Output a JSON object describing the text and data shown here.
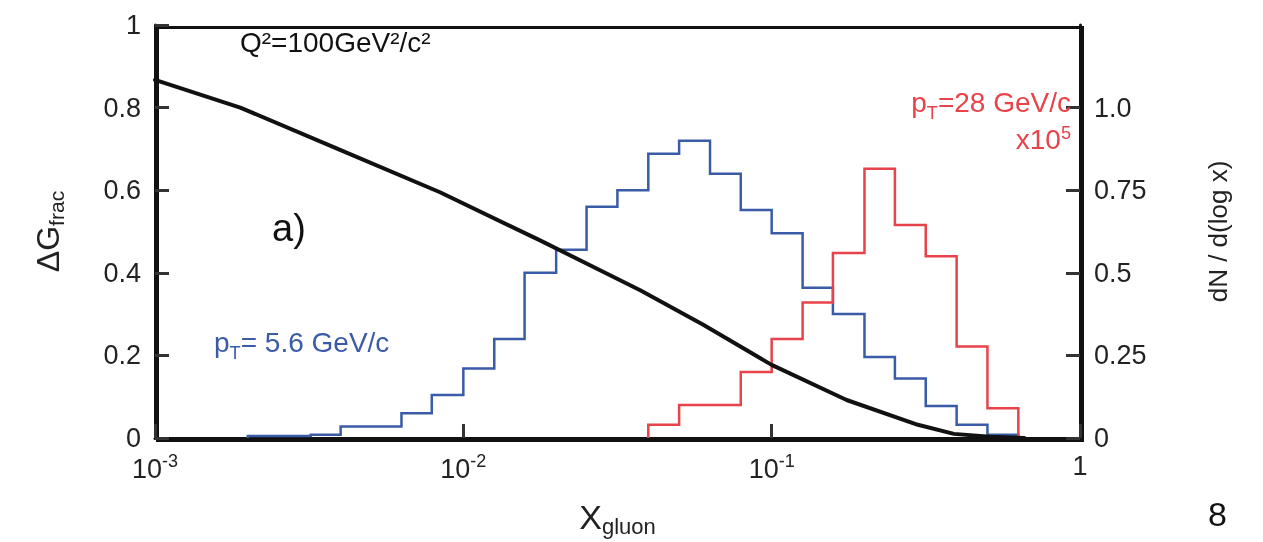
{
  "chart_data": {
    "type": "line",
    "xlabel": "X$_{gluon}$",
    "ylabel": "ΔG$_{frac}$",
    "y2label": "dN / d(log x)",
    "log": "x",
    "grid": false,
    "marker": "none",
    "xlim": [
      0.001,
      1
    ],
    "xticks": [
      {
        "value": 0.001,
        "label": "10$^{-3}$"
      },
      {
        "value": 0.01,
        "label": "10$^{-2}$"
      },
      {
        "value": 0.1,
        "label": "10$^{-1}$"
      },
      1
    ],
    "ylim": [
      0,
      1
    ],
    "yticks": [
      0,
      0.2,
      0.4,
      0.6,
      0.8,
      1
    ],
    "y2lim": [
      0,
      1.25
    ],
    "y2ticks": [
      0,
      0.25,
      0.5,
      0.75,
      {
        "value": 1,
        "label": "1.0"
      }
    ],
    "annotations": [
      "a)",
      "8"
    ],
    "series": [
      {
        "name": "Q²=100GeV²/c²",
        "color": "#111111",
        "x": [
          0.001,
          0.00189,
          0.004,
          0.0084,
          0.0178,
          0.0376,
          0.06,
          0.1,
          0.175,
          0.298,
          0.39,
          0.51,
          0.66
        ],
        "values": [
          0.867,
          0.8,
          0.697,
          0.595,
          0.478,
          0.357,
          0.274,
          0.177,
          0.092,
          0.032,
          0.01,
          0.003,
          0.0
        ]
      },
      {
        "name": "p$_{T}$= 5.6 GeV/c",
        "type": "histogram",
        "axis": "y2",
        "color": "#3a5ba8",
        "bins": [
          0.002,
          0.0025,
          0.0032,
          0.004,
          0.005,
          0.0063,
          0.0079,
          0.01,
          0.0126,
          0.0158,
          0.02,
          0.0251,
          0.0316,
          0.0398,
          0.0501,
          0.0631,
          0.0794,
          0.1,
          0.126,
          0.158,
          0.2,
          0.251,
          0.316,
          0.398,
          0.501,
          0.631
        ],
        "values": [
          0.006,
          0.006,
          0.01,
          0.035,
          0.035,
          0.075,
          0.13,
          0.21,
          0.3,
          0.5,
          0.57,
          0.7,
          0.75,
          0.86,
          0.9,
          0.8,
          0.69,
          0.62,
          0.455,
          0.375,
          0.245,
          0.18,
          0.097,
          0.04,
          0.01
        ]
      },
      {
        "name": "p$_{T}$=28 GeV/c\nx10$^{5}$",
        "type": "histogram",
        "axis": "y2",
        "color": "#e8424a",
        "bins": [
          0.0398,
          0.0501,
          0.0631,
          0.0794,
          0.1,
          0.126,
          0.158,
          0.2,
          0.251,
          0.316,
          0.398,
          0.501,
          0.631
        ],
        "values": [
          0.04,
          0.1,
          0.1,
          0.2,
          0.3,
          0.41,
          0.56,
          0.815,
          0.645,
          0.55,
          0.277,
          0.09
        ]
      }
    ]
  }
}
